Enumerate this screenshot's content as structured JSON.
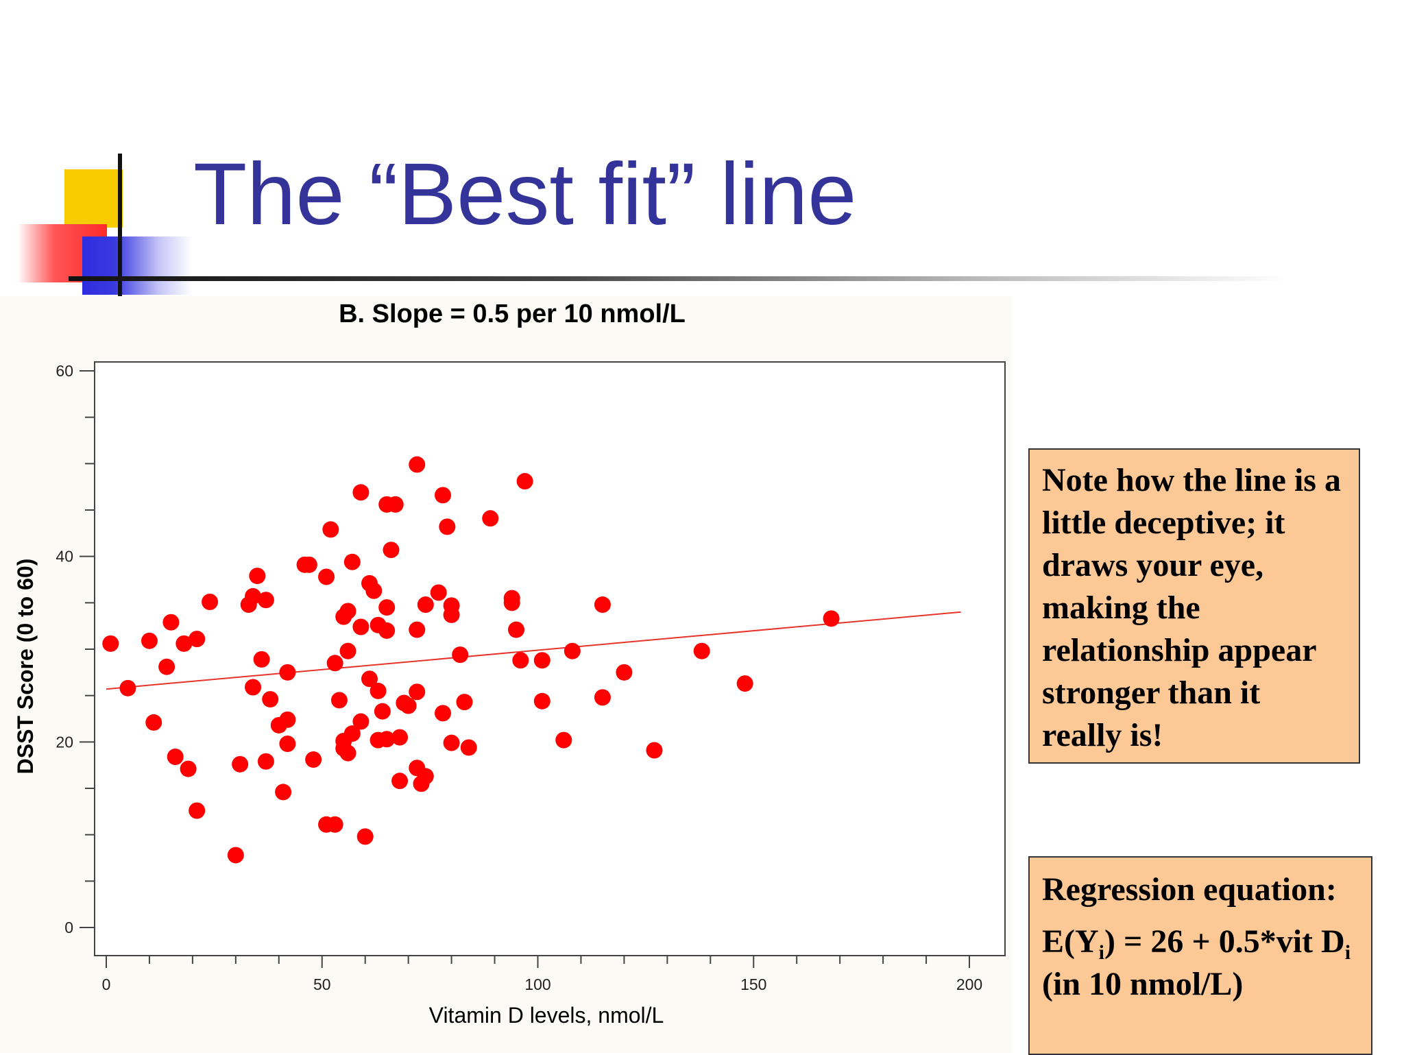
{
  "slide": {
    "title": "The “Best fit” line"
  },
  "notes": {
    "note1": "Note how the line is a little deceptive; it draws your eye, making the relationship appear stronger than it really is!",
    "regression_heading": "Regression equation:",
    "eq_part1": " E(Y",
    "eq_sub1": "i",
    "eq_part2": ") = 26 + 0.5*vit D",
    "eq_sub2": "i",
    "eq_part3": " (in 10 nmol/L)"
  },
  "colors": {
    "title": "#333399",
    "points": "#ff0000",
    "fit_line": "#e8332a",
    "note_box": "#fcc895",
    "chart_panel": "#fbfaf4"
  },
  "chart_data": {
    "type": "scatter",
    "title": "B. Slope = 0.5 per 10 nmol/L",
    "xlabel": "Vitamin D levels, nmol/L",
    "ylabel": "DSST Score (0 to 60)",
    "xlim": [
      0,
      200
    ],
    "ylim": [
      0,
      60
    ],
    "xticks": [
      0,
      50,
      100,
      150,
      200
    ],
    "yticks": [
      0,
      20,
      40,
      60
    ],
    "grid": false,
    "fit_line": {
      "x": [
        0,
        198
      ],
      "y": [
        25.7,
        34.0
      ]
    },
    "points": [
      {
        "x": 1,
        "y": 30.6
      },
      {
        "x": 5,
        "y": 25.8
      },
      {
        "x": 10,
        "y": 30.9
      },
      {
        "x": 11,
        "y": 22.1
      },
      {
        "x": 14,
        "y": 28.1
      },
      {
        "x": 15,
        "y": 32.9
      },
      {
        "x": 16,
        "y": 18.4
      },
      {
        "x": 18,
        "y": 30.6
      },
      {
        "x": 19,
        "y": 17.1
      },
      {
        "x": 21,
        "y": 31.1
      },
      {
        "x": 21,
        "y": 12.6
      },
      {
        "x": 24,
        "y": 35.1
      },
      {
        "x": 30,
        "y": 7.8
      },
      {
        "x": 31,
        "y": 17.6
      },
      {
        "x": 33,
        "y": 34.8
      },
      {
        "x": 34,
        "y": 35.7
      },
      {
        "x": 34,
        "y": 25.9
      },
      {
        "x": 35,
        "y": 37.9
      },
      {
        "x": 36,
        "y": 28.9
      },
      {
        "x": 37,
        "y": 35.3
      },
      {
        "x": 37,
        "y": 17.9
      },
      {
        "x": 38,
        "y": 24.6
      },
      {
        "x": 40,
        "y": 21.8
      },
      {
        "x": 41,
        "y": 14.6
      },
      {
        "x": 42,
        "y": 22.4
      },
      {
        "x": 42,
        "y": 27.5
      },
      {
        "x": 42,
        "y": 19.8
      },
      {
        "x": 46,
        "y": 39.1
      },
      {
        "x": 47,
        "y": 39.1
      },
      {
        "x": 48,
        "y": 18.1
      },
      {
        "x": 51,
        "y": 37.8
      },
      {
        "x": 51,
        "y": 11.1
      },
      {
        "x": 52,
        "y": 42.9
      },
      {
        "x": 53,
        "y": 28.5
      },
      {
        "x": 53,
        "y": 11.1
      },
      {
        "x": 54,
        "y": 24.5
      },
      {
        "x": 55,
        "y": 33.5
      },
      {
        "x": 55,
        "y": 20.1
      },
      {
        "x": 55,
        "y": 19.3
      },
      {
        "x": 56,
        "y": 34.1
      },
      {
        "x": 56,
        "y": 29.8
      },
      {
        "x": 56,
        "y": 18.8
      },
      {
        "x": 57,
        "y": 39.4
      },
      {
        "x": 57,
        "y": 20.9
      },
      {
        "x": 59,
        "y": 46.9
      },
      {
        "x": 59,
        "y": 32.4
      },
      {
        "x": 59,
        "y": 22.2
      },
      {
        "x": 60,
        "y": 9.8
      },
      {
        "x": 61,
        "y": 37.1
      },
      {
        "x": 61,
        "y": 26.8
      },
      {
        "x": 62,
        "y": 36.3
      },
      {
        "x": 63,
        "y": 32.6
      },
      {
        "x": 63,
        "y": 25.5
      },
      {
        "x": 63,
        "y": 20.2
      },
      {
        "x": 64,
        "y": 23.3
      },
      {
        "x": 65,
        "y": 45.6
      },
      {
        "x": 65,
        "y": 34.5
      },
      {
        "x": 65,
        "y": 32.0
      },
      {
        "x": 65,
        "y": 20.3
      },
      {
        "x": 66,
        "y": 40.7
      },
      {
        "x": 67,
        "y": 45.6
      },
      {
        "x": 68,
        "y": 20.5
      },
      {
        "x": 68,
        "y": 15.8
      },
      {
        "x": 69,
        "y": 24.2
      },
      {
        "x": 70,
        "y": 23.9
      },
      {
        "x": 72,
        "y": 49.9
      },
      {
        "x": 72,
        "y": 32.1
      },
      {
        "x": 72,
        "y": 25.4
      },
      {
        "x": 72,
        "y": 17.2
      },
      {
        "x": 73,
        "y": 15.5
      },
      {
        "x": 74,
        "y": 34.8
      },
      {
        "x": 74,
        "y": 16.3
      },
      {
        "x": 77,
        "y": 36.1
      },
      {
        "x": 78,
        "y": 46.6
      },
      {
        "x": 78,
        "y": 23.1
      },
      {
        "x": 79,
        "y": 43.2
      },
      {
        "x": 80,
        "y": 34.7
      },
      {
        "x": 80,
        "y": 33.7
      },
      {
        "x": 80,
        "y": 19.9
      },
      {
        "x": 82,
        "y": 29.4
      },
      {
        "x": 83,
        "y": 24.3
      },
      {
        "x": 84,
        "y": 19.4
      },
      {
        "x": 89,
        "y": 44.1
      },
      {
        "x": 94,
        "y": 35.5
      },
      {
        "x": 94,
        "y": 35.0
      },
      {
        "x": 95,
        "y": 32.1
      },
      {
        "x": 96,
        "y": 28.8
      },
      {
        "x": 97,
        "y": 48.1
      },
      {
        "x": 101,
        "y": 28.8
      },
      {
        "x": 101,
        "y": 24.4
      },
      {
        "x": 106,
        "y": 20.2
      },
      {
        "x": 108,
        "y": 29.8
      },
      {
        "x": 115,
        "y": 34.8
      },
      {
        "x": 115,
        "y": 24.8
      },
      {
        "x": 120,
        "y": 27.5
      },
      {
        "x": 127,
        "y": 19.1
      },
      {
        "x": 138,
        "y": 29.8
      },
      {
        "x": 148,
        "y": 26.3
      },
      {
        "x": 168,
        "y": 33.3
      }
    ]
  }
}
